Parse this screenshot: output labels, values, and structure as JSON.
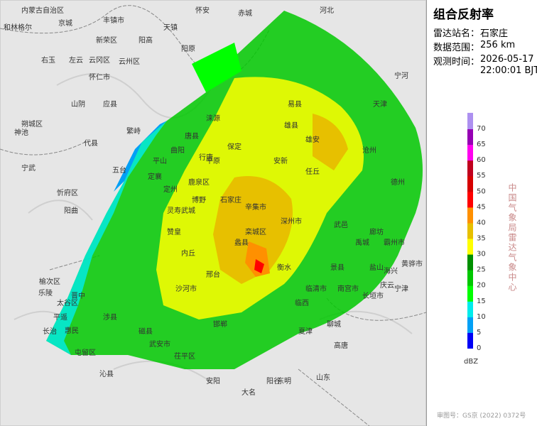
{
  "panel": {
    "title": "组合反射率",
    "fields": [
      {
        "label": "雷达站名：",
        "value": "石家庄"
      },
      {
        "label": "数据范围：",
        "value": "256 km"
      },
      {
        "label": "观测时间：",
        "value": "2026-05-17"
      }
    ],
    "time_extra": "22:00:01 BJT",
    "legend": {
      "unit": "dBZ",
      "levels": [
        0,
        5,
        10,
        15,
        20,
        25,
        30,
        35,
        40,
        45,
        50,
        55,
        60,
        65,
        70
      ],
      "colors": [
        "#0000f6",
        "#01a0f6",
        "#00ecec",
        "#00ff00",
        "#00c800",
        "#009000",
        "#ffff00",
        "#e7c000",
        "#ff9000",
        "#ff0000",
        "#d60000",
        "#c0001e",
        "#ff00f0",
        "#9600b4",
        "#ad90f0"
      ]
    },
    "org": "中国气象局雷达气象中心",
    "approval": "审图号：GS京 (2022) 0372号"
  },
  "map": {
    "labels": [
      "内蒙古自治区",
      "丰镇市",
      "京城",
      "怀安",
      "赤城",
      "河北",
      "和林格尔",
      "新荣区",
      "阳高",
      "天镇",
      "阳原",
      "右玉",
      "左云",
      "云冈区",
      "云州区",
      "怀仁市",
      "应县",
      "山阴",
      "朔城区",
      "神池",
      "代县",
      "繁峙",
      "五台",
      "宁武",
      "定襄",
      "忻府区",
      "阳曲",
      "平山",
      "鹿泉区",
      "石家庄",
      "栾城区",
      "赞皇",
      "邢台",
      "临西",
      "内丘",
      "沙河市",
      "武安市",
      "磁县",
      "邯郸",
      "涉县",
      "大名",
      "保定",
      "雄县",
      "任丘",
      "安新",
      "沧州",
      "天津",
      "宁河",
      "武邑",
      "德州",
      "景县",
      "阳谷",
      "聊城",
      "山东",
      "东明",
      "长治",
      "晋中",
      "榆次区",
      "太谷区",
      "平遥",
      "沁县",
      "屯留区",
      "安阳",
      "临清市",
      "夏津",
      "高唐",
      "茌平区",
      "长垣市",
      "禹城",
      "平原",
      "蠡县",
      "辛集市",
      "深州市",
      "衡水",
      "南宫市",
      "武城",
      "博野",
      "定州",
      "灵寿",
      "行唐",
      "曲阳",
      "唐县",
      "涞源",
      "易县",
      "雄安",
      "廊坊",
      "霸州市",
      "黄骅市",
      "海兴",
      "盐山",
      "庆云",
      "宁津",
      "乐陵",
      "惠民"
    ]
  }
}
